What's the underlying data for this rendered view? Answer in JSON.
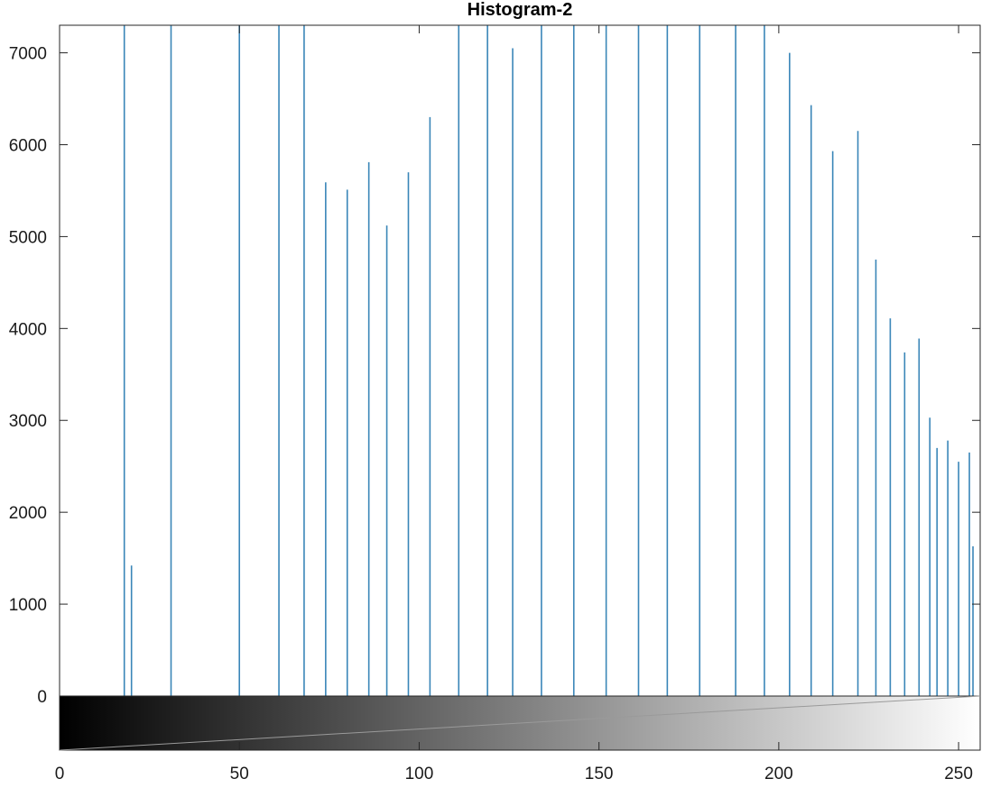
{
  "chart_data": {
    "type": "bar",
    "title": "Histogram-2",
    "xlabel": "",
    "ylabel": "",
    "xlim": [
      0,
      256
    ],
    "ylim": [
      0,
      7300
    ],
    "grid": false,
    "colorbar": "grayscale",
    "xticks": [
      0,
      50,
      100,
      150,
      200,
      250
    ],
    "yticks": [
      0,
      1000,
      2000,
      3000,
      4000,
      5000,
      6000,
      7000
    ],
    "bar_color": "#3a86b8",
    "x": [
      18,
      20,
      31,
      50,
      61,
      68,
      74,
      80,
      86,
      91,
      97,
      103,
      111,
      119,
      126,
      134,
      143,
      152,
      161,
      169,
      178,
      188,
      196,
      203,
      209,
      215,
      222,
      227,
      231,
      235,
      239,
      242,
      244,
      247,
      250,
      253,
      254
    ],
    "values": [
      7300,
      1420,
      7300,
      7300,
      7300,
      7300,
      5590,
      5510,
      5810,
      5120,
      5700,
      6300,
      7300,
      7300,
      7050,
      7300,
      7300,
      7300,
      7300,
      7300,
      7300,
      7300,
      7300,
      7000,
      6430,
      5930,
      6150,
      4750,
      4110,
      3740,
      3890,
      3030,
      2700,
      2780,
      2550,
      2650,
      1630
    ]
  }
}
